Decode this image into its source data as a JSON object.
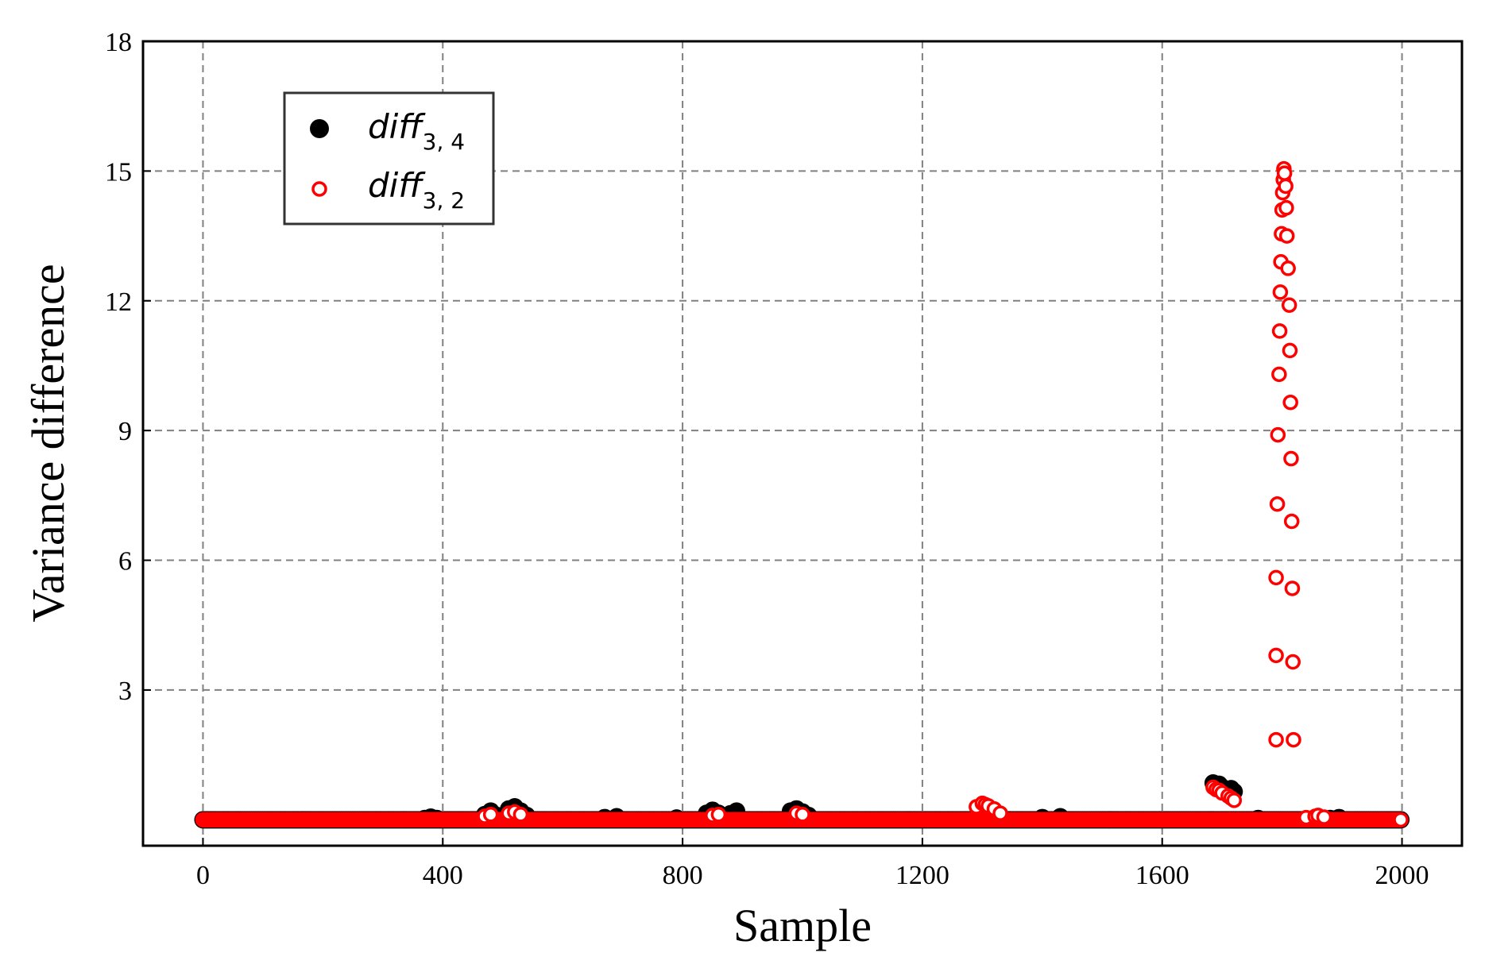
{
  "chart_data": {
    "type": "scatter",
    "xlabel": "Sample",
    "ylabel": "Variance difference",
    "xlim": [
      -100,
      2100
    ],
    "ylim": [
      -0.6,
      18
    ],
    "xticks": [
      0,
      400,
      800,
      1200,
      1600,
      2000
    ],
    "yticks": [
      3,
      6,
      9,
      12,
      15,
      18
    ],
    "grid": true,
    "legend_position": "top-left",
    "series": [
      {
        "name": "diff",
        "subscript": "3, 4",
        "marker": "filled-circle",
        "color": "#000000",
        "baseline": 0.0,
        "range": [
          0,
          2000
        ],
        "points": [
          [
            370,
            0.03
          ],
          [
            380,
            0.06
          ],
          [
            390,
            0.03
          ],
          [
            470,
            0.12
          ],
          [
            480,
            0.2
          ],
          [
            490,
            0.1
          ],
          [
            510,
            0.25
          ],
          [
            520,
            0.3
          ],
          [
            530,
            0.2
          ],
          [
            540,
            0.1
          ],
          [
            670,
            0.05
          ],
          [
            690,
            0.07
          ],
          [
            790,
            0.04
          ],
          [
            840,
            0.15
          ],
          [
            850,
            0.22
          ],
          [
            860,
            0.15
          ],
          [
            880,
            0.14
          ],
          [
            890,
            0.2
          ],
          [
            980,
            0.2
          ],
          [
            990,
            0.25
          ],
          [
            1000,
            0.18
          ],
          [
            1010,
            0.1
          ],
          [
            1400,
            0.05
          ],
          [
            1430,
            0.07
          ],
          [
            1685,
            0.85
          ],
          [
            1690,
            0.8
          ],
          [
            1695,
            0.82
          ],
          [
            1700,
            0.75
          ],
          [
            1705,
            0.7
          ],
          [
            1710,
            0.68
          ],
          [
            1715,
            0.72
          ],
          [
            1720,
            0.65
          ],
          [
            1760,
            0.03
          ],
          [
            1880,
            0.03
          ],
          [
            1895,
            0.05
          ]
        ]
      },
      {
        "name": "diff",
        "subscript": "3, 2",
        "marker": "open-circle",
        "color": "#ff0000",
        "baseline": 0.0,
        "range": [
          0,
          2000
        ],
        "points": [
          [
            470,
            0.08
          ],
          [
            480,
            0.12
          ],
          [
            510,
            0.15
          ],
          [
            520,
            0.18
          ],
          [
            530,
            0.12
          ],
          [
            850,
            0.1
          ],
          [
            860,
            0.12
          ],
          [
            990,
            0.15
          ],
          [
            1000,
            0.12
          ],
          [
            1290,
            0.3
          ],
          [
            1300,
            0.38
          ],
          [
            1305,
            0.35
          ],
          [
            1310,
            0.32
          ],
          [
            1320,
            0.25
          ],
          [
            1330,
            0.15
          ],
          [
            1685,
            0.75
          ],
          [
            1690,
            0.7
          ],
          [
            1695,
            0.68
          ],
          [
            1700,
            0.62
          ],
          [
            1710,
            0.55
          ],
          [
            1715,
            0.5
          ],
          [
            1720,
            0.45
          ],
          [
            1790,
            1.85
          ],
          [
            1790,
            3.8
          ],
          [
            1790,
            5.6
          ],
          [
            1792,
            7.3
          ],
          [
            1793,
            8.9
          ],
          [
            1795,
            10.3
          ],
          [
            1796,
            11.3
          ],
          [
            1797,
            12.2
          ],
          [
            1798,
            12.9
          ],
          [
            1799,
            13.55
          ],
          [
            1800,
            14.1
          ],
          [
            1801,
            14.5
          ],
          [
            1802,
            14.8
          ],
          [
            1803,
            15.05
          ],
          [
            1804,
            14.95
          ],
          [
            1806,
            14.65
          ],
          [
            1807,
            14.15
          ],
          [
            1808,
            13.5
          ],
          [
            1810,
            12.75
          ],
          [
            1812,
            11.9
          ],
          [
            1813,
            10.85
          ],
          [
            1814,
            9.65
          ],
          [
            1815,
            8.35
          ],
          [
            1816,
            6.9
          ],
          [
            1817,
            5.35
          ],
          [
            1818,
            3.65
          ],
          [
            1819,
            1.85
          ],
          [
            1840,
            0.05
          ],
          [
            1855,
            0.08
          ],
          [
            1860,
            0.1
          ],
          [
            1870,
            0.06
          ]
        ]
      }
    ]
  }
}
